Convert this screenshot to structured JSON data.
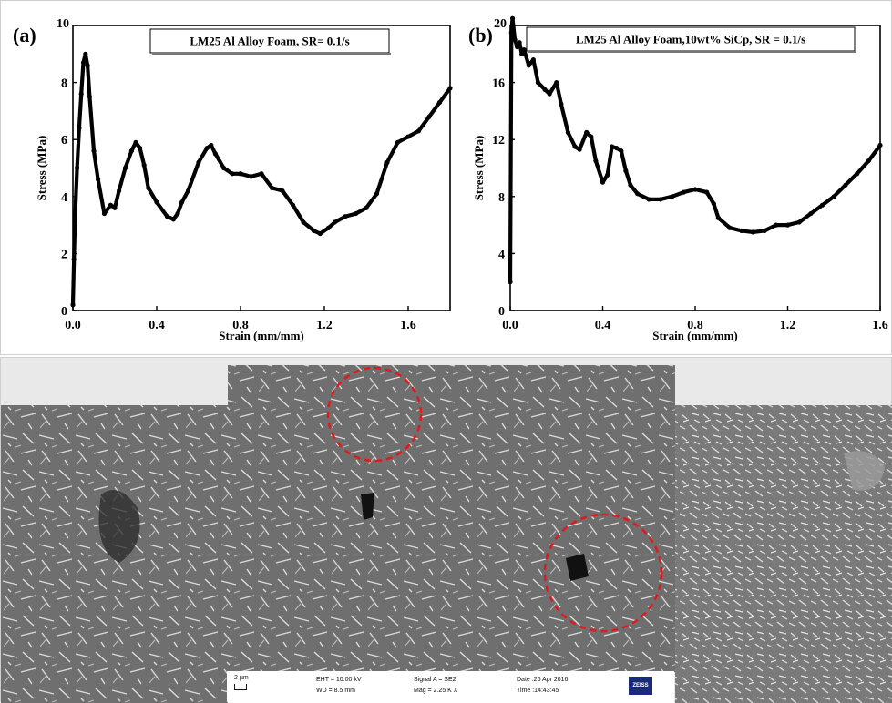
{
  "chart_data": [
    {
      "type": "line",
      "panel_label": "(a)",
      "title": "LM25 Al Alloy Foam, SR= 0.1/s",
      "xlabel": "Strain (mm/mm)",
      "ylabel": "Stress (MPa)",
      "xlim": [
        0,
        1.8
      ],
      "ylim": [
        0,
        10
      ],
      "xticks": [
        "0.0",
        "0.4",
        "0.8",
        "1.2",
        "1.6"
      ],
      "xtick_values": [
        0,
        0.4,
        0.8,
        1.2,
        1.6
      ],
      "yticks": [
        "0",
        "2",
        "4",
        "6",
        "8",
        "10"
      ],
      "ytick_values": [
        0,
        2,
        4,
        6,
        8,
        10
      ],
      "grid": false,
      "series": [
        {
          "x": [
            0,
            0.005,
            0.01,
            0.02,
            0.03,
            0.04,
            0.05,
            0.06,
            0.07,
            0.08,
            0.1,
            0.12,
            0.15,
            0.18,
            0.2,
            0.22,
            0.25,
            0.28,
            0.3,
            0.32,
            0.34,
            0.36,
            0.4,
            0.45,
            0.48,
            0.5,
            0.52,
            0.55,
            0.6,
            0.64,
            0.66,
            0.68,
            0.72,
            0.76,
            0.8,
            0.85,
            0.9,
            0.95,
            1.0,
            1.05,
            1.1,
            1.15,
            1.18,
            1.22,
            1.25,
            1.3,
            1.35,
            1.4,
            1.45,
            1.5,
            1.55,
            1.6,
            1.65,
            1.7,
            1.75,
            1.8
          ],
          "y": [
            0.2,
            1.8,
            3.2,
            5.0,
            6.4,
            7.6,
            8.7,
            9.0,
            8.6,
            7.5,
            5.6,
            4.6,
            3.4,
            3.7,
            3.6,
            4.2,
            5.0,
            5.6,
            5.9,
            5.7,
            5.1,
            4.3,
            3.8,
            3.3,
            3.2,
            3.4,
            3.8,
            4.2,
            5.2,
            5.7,
            5.8,
            5.5,
            5.0,
            4.8,
            4.8,
            4.7,
            4.8,
            4.3,
            4.2,
            3.7,
            3.1,
            2.8,
            2.7,
            2.9,
            3.1,
            3.3,
            3.4,
            3.6,
            4.1,
            5.2,
            5.9,
            6.1,
            6.3,
            6.8,
            7.3,
            7.8
          ]
        }
      ],
      "color": "#000000"
    },
    {
      "type": "line",
      "panel_label": "(b)",
      "title": "LM25 Al Alloy Foam,10wt% SiCp, SR = 0.1/s",
      "xlabel": "Strain (mm/mm)",
      "ylabel": "Stress (MPa)",
      "xlim": [
        0,
        1.6
      ],
      "ylim": [
        0,
        20
      ],
      "xticks": [
        "0.0",
        "0.4",
        "0.8",
        "1.2",
        "1.6"
      ],
      "xtick_values": [
        0,
        0.4,
        0.8,
        1.2,
        1.6
      ],
      "yticks": [
        "0",
        "4",
        "8",
        "12",
        "16",
        "20"
      ],
      "ytick_values": [
        0,
        4,
        8,
        12,
        16,
        20
      ],
      "grid": false,
      "series": [
        {
          "x": [
            0,
            0.005,
            0.01,
            0.02,
            0.03,
            0.04,
            0.05,
            0.06,
            0.08,
            0.1,
            0.12,
            0.15,
            0.17,
            0.2,
            0.22,
            0.25,
            0.28,
            0.3,
            0.33,
            0.35,
            0.37,
            0.4,
            0.42,
            0.44,
            0.46,
            0.48,
            0.5,
            0.52,
            0.55,
            0.6,
            0.65,
            0.7,
            0.75,
            0.8,
            0.85,
            0.88,
            0.9,
            0.95,
            1.0,
            1.05,
            1.1,
            1.15,
            1.2,
            1.25,
            1.3,
            1.35,
            1.4,
            1.45,
            1.5,
            1.55,
            1.6
          ],
          "y": [
            2.0,
            19.5,
            20.5,
            19.0,
            18.5,
            18.8,
            18.0,
            18.3,
            17.2,
            17.6,
            16.0,
            15.5,
            15.2,
            16.0,
            14.5,
            12.5,
            11.5,
            11.3,
            12.5,
            12.2,
            10.5,
            9.0,
            9.5,
            11.5,
            11.4,
            11.2,
            9.8,
            8.8,
            8.2,
            7.8,
            7.8,
            8.0,
            8.3,
            8.5,
            8.3,
            7.5,
            6.5,
            5.8,
            5.6,
            5.5,
            5.6,
            6.0,
            6.0,
            6.2,
            6.8,
            7.4,
            8.0,
            8.8,
            9.6,
            10.5,
            11.6
          ]
        }
      ],
      "color": "#000000"
    }
  ],
  "sem": {
    "info": {
      "scale": "2 µm",
      "eht": "EHT = 10.00 kV",
      "wd": "WD =  8.5 mm",
      "signal": "Signal A = SE2",
      "mag": "Mag =   2.25 K X",
      "date": "Date :26 Apr 2016",
      "time": "Time :14:43:45",
      "logo": "ZEISS"
    },
    "circle_color": "#e01a1a"
  }
}
